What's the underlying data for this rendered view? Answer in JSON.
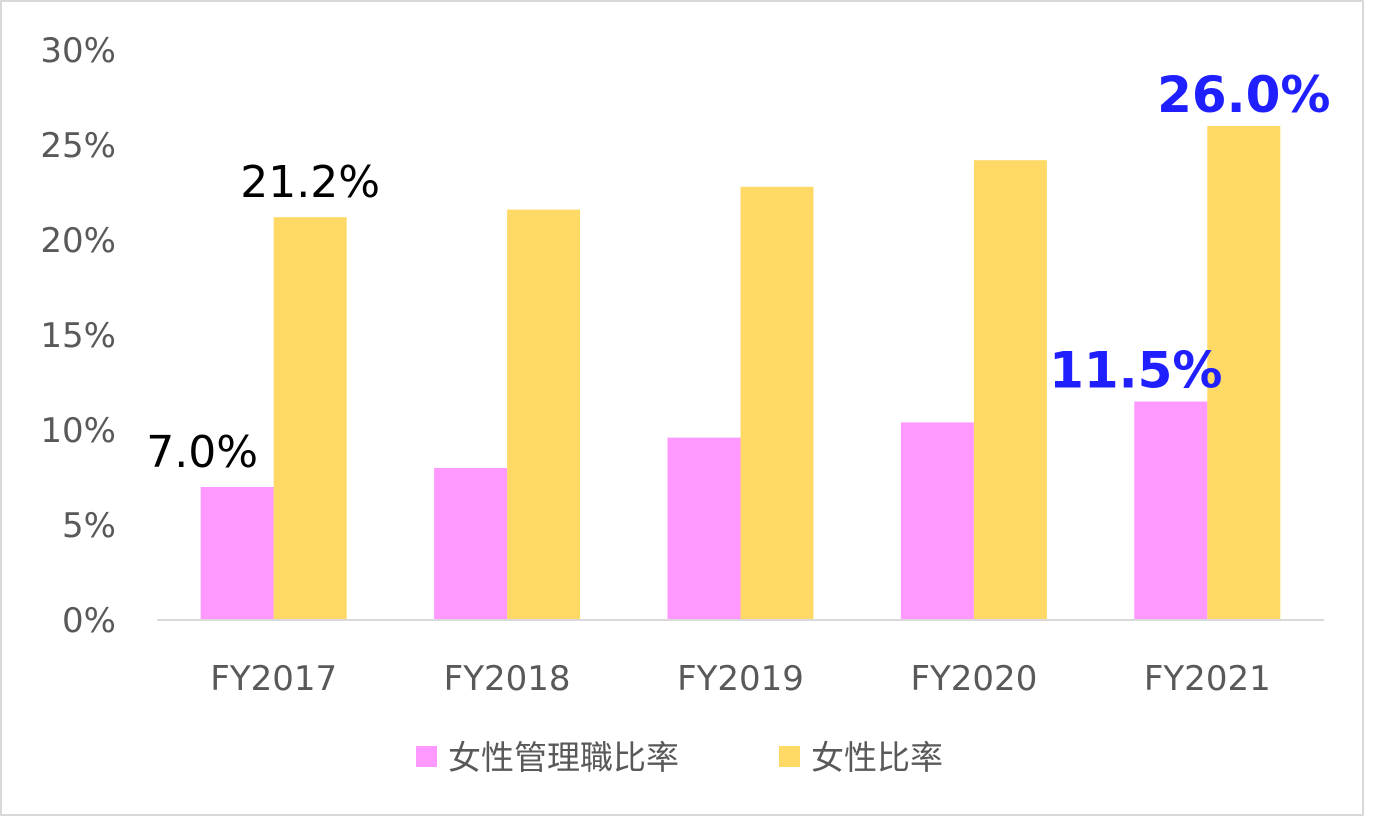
{
  "chart_data": {
    "type": "bar",
    "categories": [
      "FY2017",
      "FY2018",
      "FY2019",
      "FY2020",
      "FY2021"
    ],
    "series": [
      {
        "name": "女性管理職比率",
        "color": "#ff99ff",
        "values": [
          7.0,
          8.0,
          9.6,
          10.4,
          11.5
        ]
      },
      {
        "name": "女性比率",
        "color": "#ffd966",
        "values": [
          21.2,
          21.6,
          22.8,
          24.2,
          26.0
        ]
      }
    ],
    "ylim": [
      0,
      30
    ],
    "y_ticks": [
      "0%",
      "5%",
      "10%",
      "15%",
      "20%",
      "25%",
      "30%"
    ],
    "y_tick_values": [
      0,
      5,
      10,
      15,
      20,
      25,
      30
    ],
    "legend_position": "bottom",
    "grid": false,
    "data_labels": [
      {
        "series": 0,
        "index": 0,
        "text": "7.0%",
        "style": "black"
      },
      {
        "series": 1,
        "index": 0,
        "text": "21.2%",
        "style": "black"
      },
      {
        "series": 0,
        "index": 4,
        "text": "11.5%",
        "style": "blue"
      },
      {
        "series": 1,
        "index": 4,
        "text": "26.0%",
        "style": "blue"
      }
    ]
  }
}
